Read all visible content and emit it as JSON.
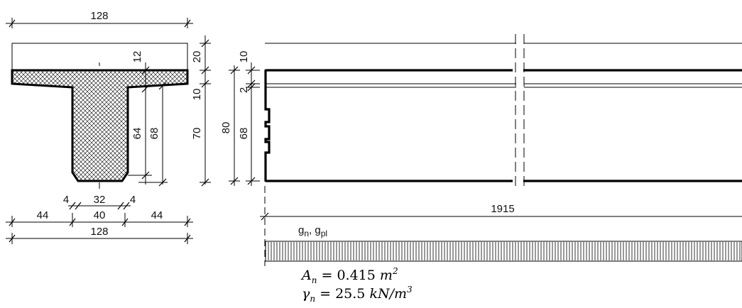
{
  "cross_section": {
    "dims": {
      "top_width": "128",
      "topping_height": "20",
      "flange_top": "12",
      "flange_height": "10",
      "web_depth": "70",
      "web_height_64": "64",
      "web_height_68": "68",
      "chamfer_left": "4",
      "web_bottom": "32",
      "chamfer_right": "4",
      "overhang_left": "44",
      "web_width": "40",
      "overhang_right": "44",
      "total_width": "128"
    }
  },
  "elevation": {
    "dims": {
      "topping": "10",
      "gap": "2",
      "total_height": "80",
      "beam_height": "68",
      "span": "1915"
    }
  },
  "load": {
    "label": "g",
    "label_sub_1": "n",
    "label_sep": ", g",
    "label_sub_2": "pl"
  },
  "formulas": {
    "area_symbol": "A",
    "area_sub": "n",
    "area_value": " = 0.415 ",
    "area_unit": "m",
    "area_exp": "2",
    "gamma_symbol": "γ",
    "gamma_sub": "n",
    "gamma_value": " = 25.5 ",
    "gamma_unit": "kN/m",
    "gamma_exp": "3"
  }
}
